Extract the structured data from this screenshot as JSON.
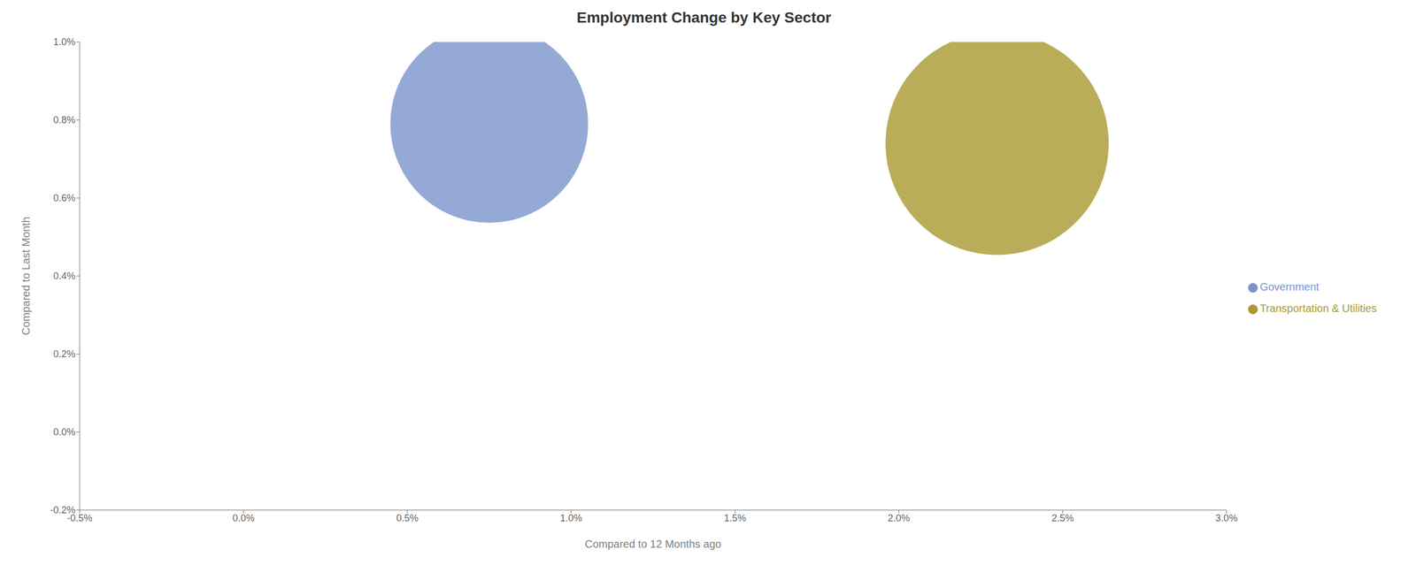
{
  "chart_data": {
    "type": "scatter",
    "title": "Employment Change by Key Sector",
    "xlabel": "Compared to 12 Months ago",
    "ylabel": "Compared to Last Month",
    "series": [
      {
        "name": "Government",
        "color": "#7b93cc",
        "x": [
          0.0075
        ],
        "values": [
          0.0079
        ],
        "size": [
          55000
        ]
      },
      {
        "name": "Transportation & Utilities",
        "color": "#a89930",
        "x": [
          0.023
        ],
        "values": [
          0.0074
        ],
        "size": [
          70000
        ]
      }
    ],
    "xlim": [
      -0.005,
      0.03
    ],
    "ylim": [
      -0.002,
      0.01
    ],
    "xticks": [
      {
        "value": -0.005,
        "label": "-0.5%"
      },
      {
        "value": 0.0,
        "label": "0.0%"
      },
      {
        "value": 0.005,
        "label": "0.5%"
      },
      {
        "value": 0.01,
        "label": "1.0%"
      },
      {
        "value": 0.015,
        "label": "1.5%"
      },
      {
        "value": 0.02,
        "label": "2.0%"
      },
      {
        "value": 0.025,
        "label": "2.5%"
      },
      {
        "value": 0.03,
        "label": "3.0%"
      }
    ],
    "yticks": [
      {
        "value": -0.002,
        "label": "-0.2%"
      },
      {
        "value": 0.0,
        "label": "0.0%"
      },
      {
        "value": 0.002,
        "label": "0.2%"
      },
      {
        "value": 0.004,
        "label": "0.4%"
      },
      {
        "value": 0.006,
        "label": "0.6%"
      },
      {
        "value": 0.008,
        "label": "0.8%"
      },
      {
        "value": 0.01,
        "label": "1.0%"
      }
    ],
    "grid": false,
    "legend": "right"
  }
}
